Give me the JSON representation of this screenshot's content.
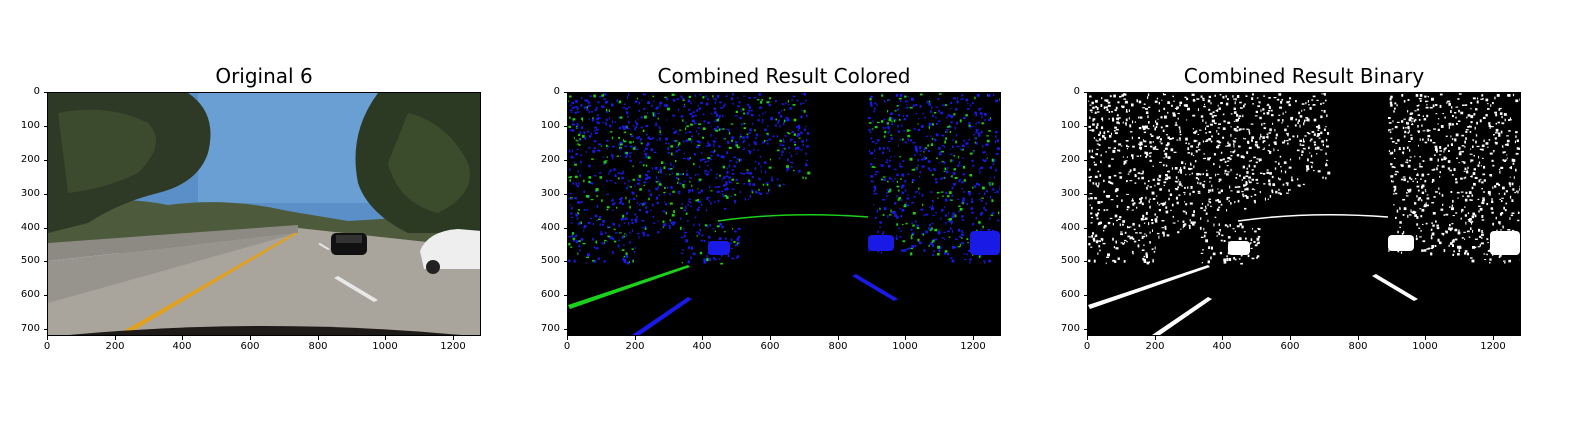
{
  "panels": [
    {
      "id": "original",
      "title": "Original 6",
      "x_ticks": [
        "0",
        "200",
        "400",
        "600",
        "800",
        "1000",
        "1200"
      ],
      "y_ticks": [
        "0",
        "100",
        "200",
        "300",
        "400",
        "500",
        "600",
        "700"
      ],
      "image_kind": "color-road-photo"
    },
    {
      "id": "colored",
      "title": "Combined Result Colored",
      "x_ticks": [
        "0",
        "200",
        "400",
        "600",
        "800",
        "1000",
        "1200"
      ],
      "y_ticks": [
        "0",
        "100",
        "200",
        "300",
        "400",
        "500",
        "600",
        "700"
      ],
      "image_kind": "green-blue-edge-map"
    },
    {
      "id": "binary",
      "title": "Combined Result Binary",
      "x_ticks": [
        "0",
        "200",
        "400",
        "600",
        "800",
        "1000",
        "1200"
      ],
      "y_ticks": [
        "0",
        "100",
        "200",
        "300",
        "400",
        "500",
        "600",
        "700"
      ],
      "image_kind": "white-binary-edge-map"
    }
  ],
  "colors": {
    "sky": "#5b8fc7",
    "road": "#a9a59d",
    "lane_yellow": "#e0a020",
    "edge_green": "#1bd11b",
    "edge_blue": "#1a1ae6",
    "edge_white": "#ffffff",
    "background_black": "#000000"
  }
}
